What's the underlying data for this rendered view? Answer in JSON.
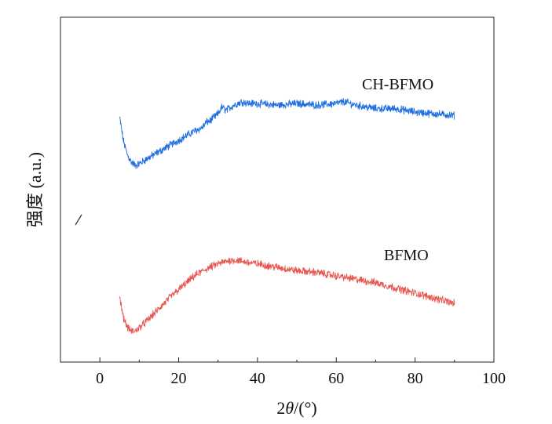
{
  "chart_data": {
    "type": "line",
    "xlabel_prefix": "2",
    "xlabel_symbol": "θ",
    "xlabel_suffix": "/(°)",
    "ylabel": "强度 (a.u.)",
    "xlim": [
      -10,
      100
    ],
    "xticks": [
      0,
      20,
      40,
      60,
      80,
      100
    ],
    "ylim": [
      0,
      100
    ],
    "series": [
      {
        "name": "CH-BFMO",
        "color": "#1f6fe0",
        "x": [
          5,
          6,
          7,
          8,
          9,
          10,
          12,
          15,
          18,
          21,
          24,
          26,
          27,
          28,
          30,
          31,
          32,
          34,
          36,
          38,
          40,
          45,
          50,
          55,
          60,
          62,
          65,
          70,
          75,
          80,
          85,
          90
        ],
        "y": [
          71,
          64,
          60,
          58,
          57,
          57.5,
          59,
          61,
          63,
          65,
          67,
          68,
          69.5,
          70,
          72,
          74,
          73,
          74.5,
          75.5,
          75,
          75,
          74.5,
          75,
          74.5,
          75,
          75.5,
          74.5,
          73.5,
          73.5,
          72.5,
          72,
          71.5
        ]
      },
      {
        "name": "BFMO",
        "color": "#e8574f",
        "x": [
          5,
          6,
          7,
          8,
          9,
          10,
          12,
          15,
          18,
          21,
          24,
          27,
          30,
          33,
          35,
          37,
          40,
          45,
          50,
          55,
          60,
          65,
          70,
          75,
          80,
          85,
          90
        ],
        "y": [
          19,
          13,
          10,
          9,
          9,
          10,
          12,
          15.5,
          19,
          22,
          25,
          27,
          28.5,
          29.5,
          29.5,
          29,
          28.5,
          27.5,
          26.5,
          26,
          25,
          24,
          23,
          21.5,
          20,
          18.5,
          17
        ]
      }
    ]
  },
  "colors": {
    "axis": "#222222",
    "slash": "#333333"
  }
}
